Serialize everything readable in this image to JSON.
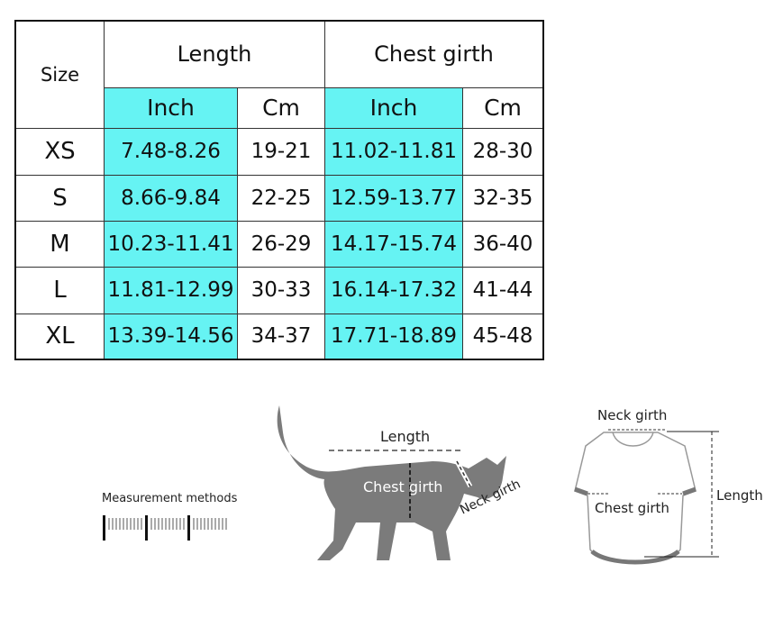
{
  "table": {
    "size_header": "Size",
    "groups": [
      "Length",
      "Chest girth"
    ],
    "units": [
      "Inch",
      "Cm",
      "Inch",
      "Cm"
    ],
    "rows": [
      {
        "size": "XS",
        "cells": [
          "7.48-8.26",
          "19-21",
          "11.02-11.81",
          "28-30"
        ]
      },
      {
        "size": "S",
        "cells": [
          "8.66-9.84",
          "22-25",
          "12.59-13.77",
          "32-35"
        ]
      },
      {
        "size": "M",
        "cells": [
          "10.23-11.41",
          "26-29",
          "14.17-15.74",
          "36-40"
        ]
      },
      {
        "size": "L",
        "cells": [
          "11.81-12.99",
          "30-33",
          "16.14-17.32",
          "41-44"
        ]
      },
      {
        "size": "XL",
        "cells": [
          "13.39-14.56",
          "34-37",
          "17.71-18.89",
          "45-48"
        ]
      }
    ],
    "highlight_color": "#66f3f3"
  },
  "diagram": {
    "measurement_label": "Measurement methods",
    "cat": {
      "length": "Length",
      "chest": "Chest girth",
      "neck": "Neck girth"
    },
    "shirt": {
      "neck": "Neck girth",
      "chest": "Chest girth",
      "length": "Length"
    }
  }
}
